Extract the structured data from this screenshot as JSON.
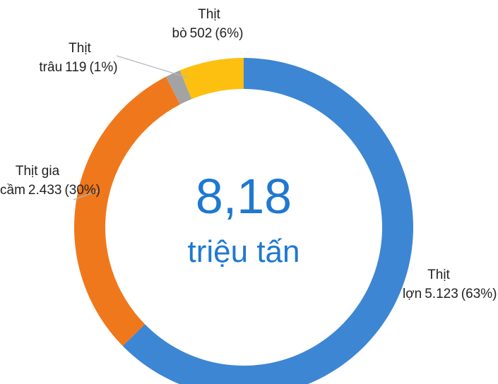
{
  "chart_data": {
    "type": "donut",
    "center_value": "8,18",
    "center_label": "triệu tấn",
    "categories": [
      "Thịt lợn",
      "Thịt gia cầm",
      "Thịt trâu",
      "Thịt bò"
    ],
    "values": [
      5123,
      2433,
      119,
      502
    ],
    "value_labels": [
      "5.123",
      "2.433",
      "119",
      "502"
    ],
    "percent_labels": [
      "(63%)",
      "(30%)",
      "(1%)",
      "(6%)"
    ],
    "colors": [
      "#3d86d3",
      "#f0781c",
      "#a3a3a3",
      "#fdbf10"
    ]
  }
}
